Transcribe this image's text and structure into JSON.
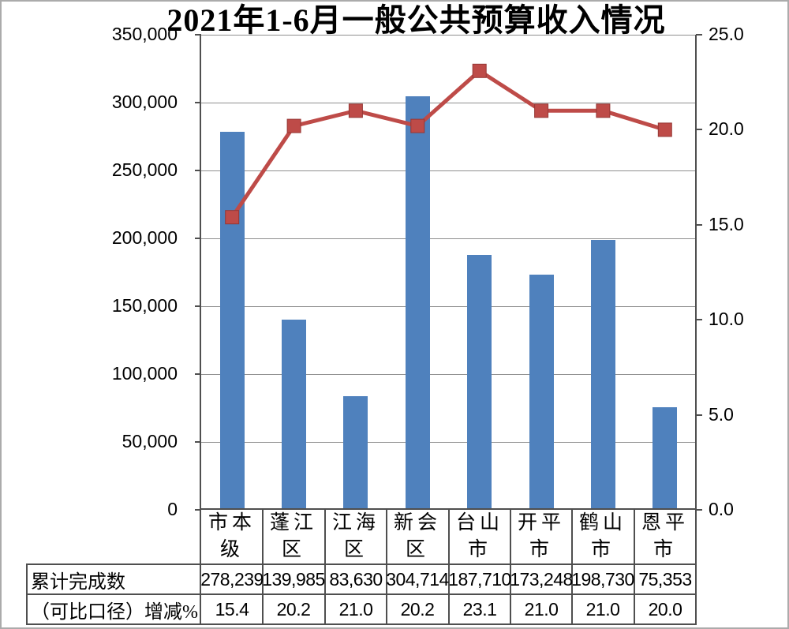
{
  "chart_data": {
    "type": "bar",
    "combo": "bar + line, dual axis, data table shown below plot",
    "title": "2021年1-6月一般公共预算收入情况",
    "categories": [
      "市本级",
      "蓬江区",
      "江海区",
      "新会区",
      "台山市",
      "开平市",
      "鹤山市",
      "恩平市"
    ],
    "series": [
      {
        "name": "累计完成数",
        "chart": "bar",
        "axis": "left",
        "color": "#4F81BD",
        "values": [
          278239,
          139985,
          83630,
          304714,
          187710,
          173248,
          198730,
          75353
        ],
        "labels": [
          "278,239",
          "139,985",
          "83,630",
          "304,714",
          "187,710",
          "173,248",
          "198,730",
          "75,353"
        ]
      },
      {
        "name": "（可比口径）增减%",
        "chart": "line",
        "axis": "right",
        "color": "#BE4B48",
        "marker": "square",
        "values": [
          15.4,
          20.2,
          21.0,
          20.2,
          23.1,
          21.0,
          21.0,
          20.0
        ],
        "labels": [
          "15.4",
          "20.2",
          "21.0",
          "20.2",
          "23.1",
          "21.0",
          "21.0",
          "20.0"
        ]
      }
    ],
    "left_axis": {
      "min": 0,
      "max": 350000,
      "step": 50000,
      "tick_labels": [
        "0",
        "50,000",
        "100,000",
        "150,000",
        "200,000",
        "250,000",
        "300,000",
        "350,000"
      ]
    },
    "right_axis": {
      "min": 0,
      "max": 25,
      "step": 5,
      "tick_labels": [
        "0.0",
        "5.0",
        "10.0",
        "15.0",
        "20.0",
        "25.0"
      ]
    },
    "grid": true,
    "legend_position": "none"
  },
  "colors": {
    "bar": "#4F81BD",
    "line": "#BE4B48",
    "marker_stroke": "#953735",
    "gridline": "#909090",
    "axis": "#4F4F4F",
    "frame": "#ABABAB",
    "background": "#FFFFFF",
    "text": "#000000"
  }
}
